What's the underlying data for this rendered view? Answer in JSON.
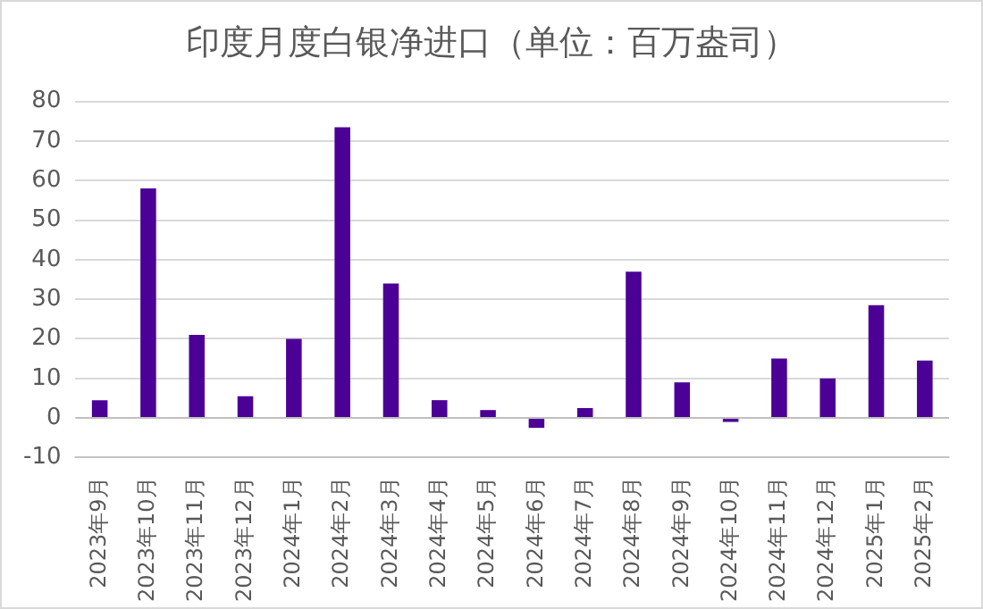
{
  "chart_data": {
    "type": "bar",
    "title": "印度月度白银净进口（单位：百万盎司）",
    "categories": [
      "2023年9月",
      "2023年10月",
      "2023年11月",
      "2023年12月",
      "2024年1月",
      "2024年2月",
      "2024年3月",
      "2024年4月",
      "2024年5月",
      "2024年6月",
      "2024年7月",
      "2024年8月",
      "2024年9月",
      "2024年10月",
      "2024年11月",
      "2024年12月",
      "2025年1月",
      "2025年2月"
    ],
    "values": [
      4.5,
      58,
      21,
      5.5,
      20,
      73.5,
      34,
      4.5,
      2,
      -2.5,
      2.5,
      37,
      9,
      -1,
      15,
      10,
      28.5,
      14.5
    ],
    "color": "#4b0096",
    "ylim": [
      -10,
      80
    ],
    "yticks": [
      -10,
      0,
      10,
      20,
      30,
      40,
      50,
      60,
      70,
      80
    ],
    "grid": "y",
    "legend": false
  }
}
